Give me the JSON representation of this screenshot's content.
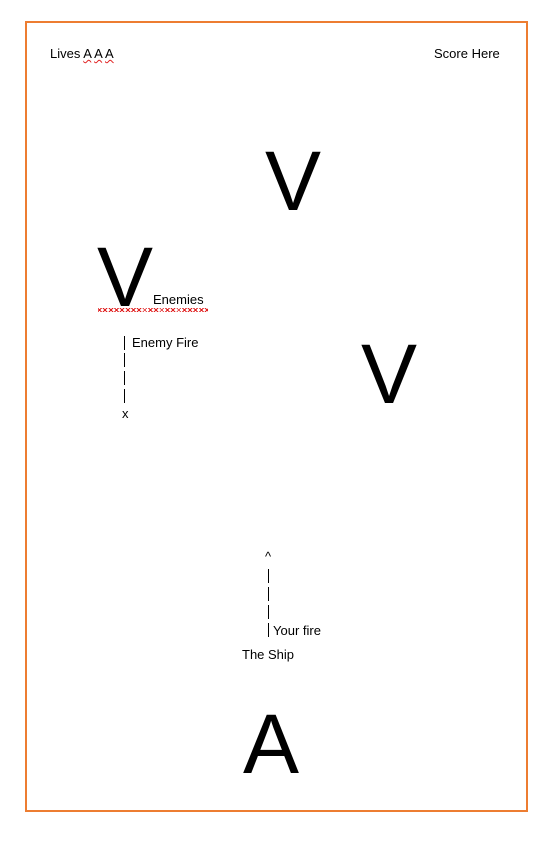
{
  "hud": {
    "lives_label": "Lives",
    "lives_icons": [
      "A",
      "A",
      "A"
    ],
    "score_label": "Score Here"
  },
  "enemies": {
    "glyph": "V",
    "label": "Enemies"
  },
  "enemy_fire": {
    "label": "Enemy Fire",
    "impact_marker": "x"
  },
  "player": {
    "ship_glyph": "A",
    "ship_label": "The Ship",
    "fire_tip": "^",
    "fire_label": "Your fire"
  },
  "colors": {
    "frame_border": "#ed7d31",
    "spellcheck_underline": "#e02020"
  }
}
